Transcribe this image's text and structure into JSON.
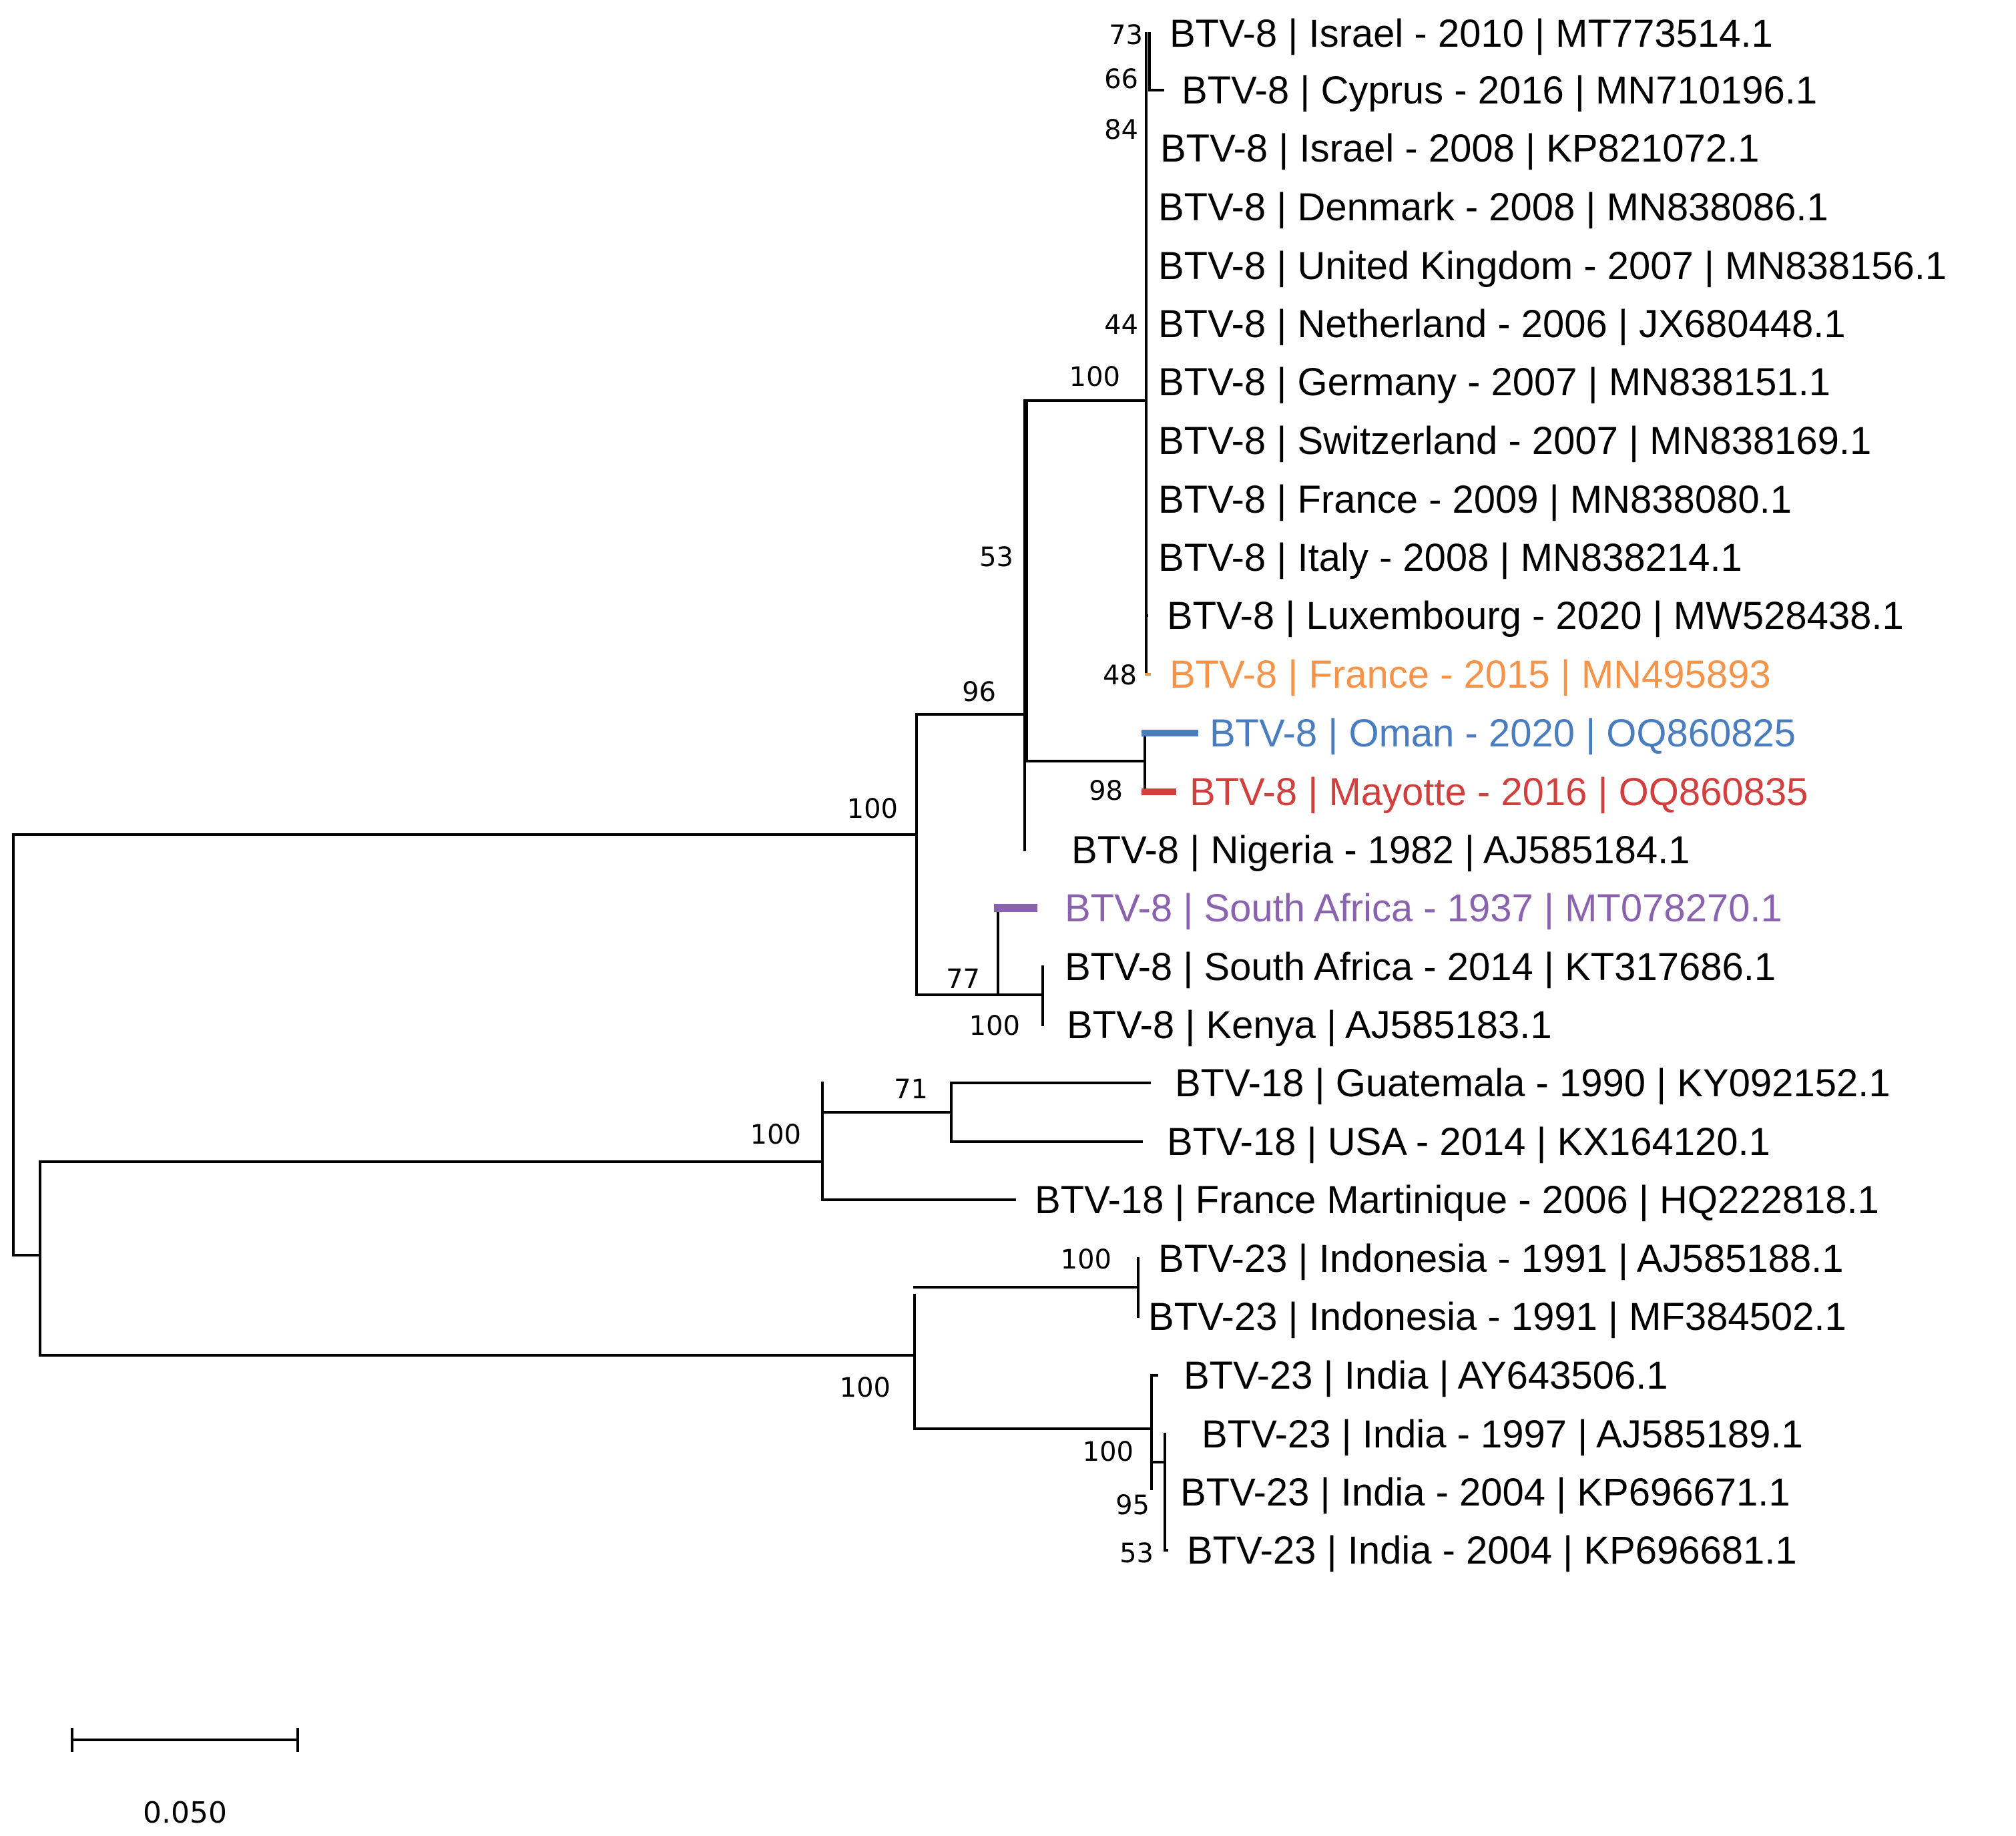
{
  "colors": {
    "default": "#000000",
    "france_2015": "#F4944A",
    "oman_2020": "#4A7CC0",
    "mayotte_2016": "#D0403F",
    "south_africa_1937": "#8A63AE"
  },
  "tips": [
    {
      "id": "t1",
      "label": "BTV-8 | Israel - 2010 | MT773514.1"
    },
    {
      "id": "t2",
      "label": "BTV-8 | Cyprus - 2016 | MN710196.1"
    },
    {
      "id": "t3",
      "label": "BTV-8 | Israel - 2008 | KP821072.1"
    },
    {
      "id": "t4",
      "label": "BTV-8 | Denmark - 2008 | MN838086.1"
    },
    {
      "id": "t5",
      "label": "BTV-8 | United Kingdom - 2007 | MN838156.1"
    },
    {
      "id": "t6",
      "label": "BTV-8 | Netherland - 2006 | JX680448.1"
    },
    {
      "id": "t7",
      "label": "BTV-8 | Germany - 2007 | MN838151.1"
    },
    {
      "id": "t8",
      "label": "BTV-8 | Switzerland - 2007 | MN838169.1"
    },
    {
      "id": "t9",
      "label": "BTV-8 | France - 2009 | MN838080.1"
    },
    {
      "id": "t10",
      "label": "BTV-8 | Italy - 2008 | MN838214.1"
    },
    {
      "id": "t11",
      "label": "BTV-8 | Luxembourg - 2020 | MW528438.1"
    },
    {
      "id": "t12",
      "label": "BTV-8 | France - 2015 | MN495893",
      "color_key": "france_2015"
    },
    {
      "id": "t13",
      "label": "BTV-8 | Oman - 2020 | OQ860825",
      "color_key": "oman_2020"
    },
    {
      "id": "t14",
      "label": "BTV-8 | Mayotte - 2016 | OQ860835",
      "color_key": "mayotte_2016"
    },
    {
      "id": "t15",
      "label": "BTV-8 | Nigeria - 1982 | AJ585184.1"
    },
    {
      "id": "t16",
      "label": "BTV-8 | South Africa - 1937 | MT078270.1",
      "color_key": "south_africa_1937"
    },
    {
      "id": "t17",
      "label": "BTV-8 | South Africa - 2014 | KT317686.1"
    },
    {
      "id": "t18",
      "label": "BTV-8 | Kenya | AJ585183.1"
    },
    {
      "id": "t19",
      "label": "BTV-18 | Guatemala - 1990 | KY092152.1"
    },
    {
      "id": "t20",
      "label": "BTV-18 | USA - 2014 | KX164120.1"
    },
    {
      "id": "t21",
      "label": "BTV-18 | France Martinique - 2006 | HQ222818.1"
    },
    {
      "id": "t22",
      "label": "BTV-23 | Indonesia - 1991 | AJ585188.1"
    },
    {
      "id": "t23",
      "label": "BTV-23 | Indonesia - 1991 | MF384502.1"
    },
    {
      "id": "t24",
      "label": "BTV-23 | India | AY643506.1"
    },
    {
      "id": "t25",
      "label": "BTV-23 | India - 1997 | AJ585189.1"
    },
    {
      "id": "t26",
      "label": "BTV-23 | India - 2004 | KP696671.1"
    },
    {
      "id": "t27",
      "label": "BTV-23 | India - 2004 | KP696681.1"
    }
  ],
  "bootstrap": [
    {
      "id": "b73",
      "value": "73"
    },
    {
      "id": "b66",
      "value": "66"
    },
    {
      "id": "b84",
      "value": "84"
    },
    {
      "id": "b44",
      "value": "44"
    },
    {
      "id": "b100a",
      "value": "100"
    },
    {
      "id": "b48",
      "value": "48"
    },
    {
      "id": "b53a",
      "value": "53"
    },
    {
      "id": "b96",
      "value": "96"
    },
    {
      "id": "b100b",
      "value": "100"
    },
    {
      "id": "b98",
      "value": "98"
    },
    {
      "id": "b77",
      "value": "77"
    },
    {
      "id": "b100c",
      "value": "100"
    },
    {
      "id": "b71",
      "value": "71"
    },
    {
      "id": "b100d",
      "value": "100"
    },
    {
      "id": "b100e",
      "value": "100"
    },
    {
      "id": "b100f",
      "value": "100"
    },
    {
      "id": "b100g",
      "value": "100"
    },
    {
      "id": "b95",
      "value": "95"
    },
    {
      "id": "b53b",
      "value": "53"
    }
  ],
  "scale_bar": {
    "value": 0.05,
    "label": "0.050"
  }
}
